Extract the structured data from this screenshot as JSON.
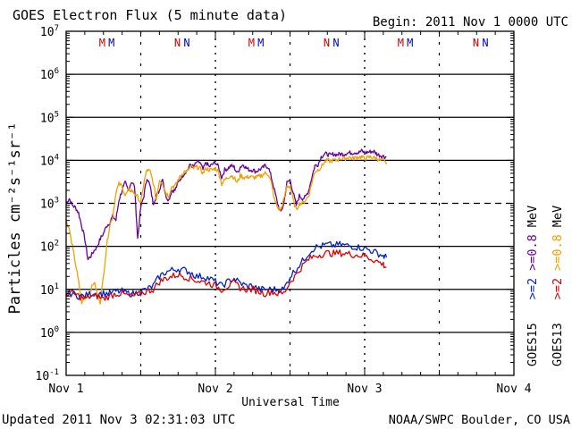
{
  "chart_data": {
    "type": "line",
    "title": "GOES Electron Flux (5 minute data)",
    "begin": "Begin: 2011 Nov 1 0000 UTC",
    "xlabel": "Universal Time",
    "ylabel": "Particles cm⁻²s⁻¹sr⁻¹",
    "updated": "Updated 2011 Nov  3 02:31:03 UTC",
    "credit": "NOAA/SWPC Boulder, CO USA",
    "x_unit": "hours since 2011 Nov 1 00:00 UTC",
    "xlim": [
      0,
      72
    ],
    "x_tick_labels": [
      {
        "x": 0,
        "label": "Nov 1"
      },
      {
        "x": 24,
        "label": "Nov 2"
      },
      {
        "x": 48,
        "label": "Nov 3"
      },
      {
        "x": 72,
        "label": "Nov 4"
      }
    ],
    "y_scale": "log",
    "ylim_log10": [
      -1,
      7
    ],
    "y_tick_labels": [
      {
        "exp": 7,
        "base": "10",
        "sup": "7"
      },
      {
        "exp": 6,
        "base": "10",
        "sup": "6"
      },
      {
        "exp": 5,
        "base": "10",
        "sup": "5"
      },
      {
        "exp": 4,
        "base": "10",
        "sup": "4"
      },
      {
        "exp": 3,
        "base": "10",
        "sup": "3"
      },
      {
        "exp": 2,
        "base": "10",
        "sup": "2"
      },
      {
        "exp": 1,
        "base": "10",
        "sup": "1"
      },
      {
        "exp": 0,
        "base": "10",
        "sup": "0"
      },
      {
        "exp": -1,
        "base": "10",
        "sup": "-1"
      }
    ],
    "threshold_dashed_at": 1000,
    "noon_markers_hours": [
      12,
      36,
      60
    ],
    "midnight_markers_hours": [
      24,
      48
    ],
    "markers": [
      {
        "label": "M",
        "x": 5.8,
        "color": "#cc0000"
      },
      {
        "label": "M",
        "x": 7.3,
        "color": "#0000cc"
      },
      {
        "label": "N",
        "x": 17.9,
        "color": "#cc0000"
      },
      {
        "label": "N",
        "x": 19.4,
        "color": "#0000cc"
      },
      {
        "label": "M",
        "x": 29.8,
        "color": "#cc0000"
      },
      {
        "label": "M",
        "x": 31.3,
        "color": "#0000cc"
      },
      {
        "label": "N",
        "x": 41.9,
        "color": "#cc0000"
      },
      {
        "label": "N",
        "x": 43.4,
        "color": "#0000cc"
      },
      {
        "label": "M",
        "x": 53.8,
        "color": "#cc0000"
      },
      {
        "label": "M",
        "x": 55.3,
        "color": "#0000cc"
      },
      {
        "label": "N",
        "x": 65.9,
        "color": "#cc0000"
      },
      {
        "label": "N",
        "x": 67.4,
        "color": "#0000cc"
      }
    ],
    "legend": {
      "position": "right",
      "columns": [
        {
          "sat": "GOES15",
          "items": [
            {
              "label": ">=2",
              "color": "#0022cc"
            },
            {
              "label": ">=0.8",
              "color": "#660099"
            },
            {
              "label": "MeV",
              "color": "#000000"
            }
          ]
        },
        {
          "sat": "GOES13",
          "items": [
            {
              "label": ">=2",
              "color": "#dd0000"
            },
            {
              "label": ">=0.8",
              "color": "#f0a000"
            },
            {
              "label": "MeV",
              "color": "#000000"
            }
          ]
        }
      ]
    },
    "series": [
      {
        "name": "GOES15 >=0.8 MeV",
        "color": "#660099",
        "x": [
          0,
          0.5,
          1,
          1.5,
          2,
          2.5,
          3,
          3.5,
          4,
          4.5,
          5,
          5.5,
          6,
          6.5,
          7,
          7.5,
          8,
          8.5,
          9,
          9.5,
          10,
          10.5,
          11,
          11.5,
          12,
          12.5,
          13,
          13.5,
          14,
          14.5,
          15,
          15.5,
          16,
          16.5,
          17,
          17.5,
          18,
          18.5,
          19,
          19.5,
          20,
          20.5,
          21,
          21.5,
          22,
          22.5,
          23,
          23.5,
          24,
          24.5,
          25,
          25.5,
          26,
          26.5,
          27,
          27.5,
          28,
          28.5,
          29,
          29.5,
          30,
          30.5,
          31,
          31.5,
          32,
          32.5,
          33,
          33.5,
          34,
          34.5,
          35,
          35.5,
          36,
          36.5,
          37,
          37.5,
          38,
          38.5,
          39,
          39.5,
          40,
          40.5,
          41,
          41.5,
          42,
          42.5,
          43,
          43.5,
          44,
          44.5,
          45,
          45.5,
          46,
          46.5,
          47,
          47.5,
          48,
          48.5,
          49,
          49.5,
          50,
          50.5,
          51,
          51.5
        ],
        "values": [
          1000,
          1300,
          900,
          800,
          600,
          300,
          150,
          50,
          60,
          80,
          100,
          150,
          200,
          300,
          350,
          500,
          400,
          1200,
          2000,
          3000,
          2000,
          3200,
          2500,
          150,
          800,
          1500,
          4000,
          2500,
          1000,
          1500,
          2000,
          4000,
          1500,
          1200,
          2000,
          2000,
          3000,
          4000,
          5000,
          6000,
          8000,
          7000,
          9000,
          9000,
          6000,
          9000,
          7000,
          8000,
          9000,
          7000,
          4000,
          6000,
          6500,
          7500,
          7000,
          5000,
          7000,
          8000,
          6500,
          6000,
          6000,
          5500,
          6000,
          6500,
          7500,
          7000,
          4000,
          2000,
          1000,
          600,
          1000,
          3000,
          3500,
          1800,
          900,
          1500,
          1300,
          1400,
          2000,
          4000,
          7500,
          8000,
          12000,
          14000,
          14000,
          13000,
          14000,
          13500,
          14000,
          14000,
          14500,
          15000,
          15000,
          15500,
          15000,
          16500,
          15000,
          15500,
          16000,
          16000,
          14000,
          13000,
          12500,
          12000
        ]
      },
      {
        "name": "GOES13 >=0.8 MeV",
        "color": "#f0a000",
        "x": [
          0,
          0.5,
          1,
          1.5,
          2,
          2.5,
          3,
          3.5,
          4,
          4.5,
          5,
          5.5,
          6,
          6.5,
          7,
          7.5,
          8,
          8.5,
          9,
          9.5,
          10,
          10.5,
          11,
          11.5,
          12,
          12.5,
          13,
          13.5,
          14,
          14.5,
          15,
          15.5,
          16,
          16.5,
          17,
          17.5,
          18,
          18.5,
          19,
          19.5,
          20,
          20.5,
          21,
          21.5,
          22,
          22.5,
          23,
          23.5,
          24,
          24.5,
          25,
          25.5,
          26,
          26.5,
          27,
          27.5,
          28,
          28.5,
          29,
          29.5,
          30,
          30.5,
          31,
          31.5,
          32,
          32.5,
          33,
          33.5,
          34,
          34.5,
          35,
          35.5,
          36,
          36.5,
          37,
          37.5,
          38,
          38.5,
          39,
          39.5,
          40,
          40.5,
          41,
          41.5,
          42,
          42.5,
          43,
          43.5,
          44,
          44.5,
          45,
          45.5,
          46,
          46.5,
          47,
          47.5,
          48,
          48.5,
          49,
          49.5,
          50,
          50.5,
          51,
          51.5
        ],
        "values": [
          400,
          250,
          100,
          40,
          15,
          5,
          6,
          8,
          10,
          15,
          8,
          5,
          20,
          100,
          300,
          500,
          1800,
          2800,
          2500,
          1500,
          2000,
          2000,
          1700,
          1400,
          1000,
          3000,
          6000,
          5500,
          3000,
          1200,
          3500,
          3000,
          1800,
          1500,
          2500,
          2500,
          3500,
          4500,
          5500,
          5500,
          7000,
          6500,
          7000,
          6500,
          5000,
          6500,
          6000,
          6000,
          6500,
          5500,
          2800,
          3500,
          4000,
          4500,
          4000,
          3000,
          4500,
          4000,
          4000,
          4200,
          4000,
          4000,
          4200,
          4500,
          5000,
          4800,
          3000,
          1200,
          800,
          700,
          1200,
          2500,
          2500,
          1200,
          700,
          1000,
          1000,
          1200,
          1500,
          3000,
          5500,
          6000,
          7000,
          9000,
          10000,
          9500,
          10000,
          10000,
          11000,
          11000,
          11000,
          12000,
          11000,
          11500,
          12000,
          12000,
          11000,
          11500,
          12000,
          11500,
          11000,
          10000,
          10000,
          8000
        ]
      },
      {
        "name": "GOES15 >=2 MeV",
        "color": "#0022cc",
        "x": [
          0,
          1,
          2,
          3,
          4,
          5,
          6,
          7,
          8,
          9,
          10,
          11,
          12,
          13,
          14,
          15,
          16,
          17,
          18,
          19,
          20,
          21,
          22,
          23,
          24,
          25,
          26,
          27,
          28,
          29,
          30,
          31,
          32,
          33,
          34,
          35,
          36,
          37,
          38,
          39,
          40,
          41,
          42,
          43,
          44,
          45,
          46,
          47,
          48,
          49,
          50,
          51,
          51.5
        ],
        "values": [
          8,
          8,
          7,
          7,
          8,
          8,
          8,
          8,
          9,
          9,
          8,
          8,
          9,
          10,
          12,
          20,
          25,
          28,
          30,
          28,
          25,
          20,
          20,
          18,
          15,
          12,
          15,
          18,
          14,
          12,
          12,
          10,
          10,
          10,
          10,
          10,
          20,
          30,
          45,
          70,
          95,
          100,
          110,
          105,
          110,
          105,
          100,
          95,
          90,
          80,
          70,
          60,
          55
        ]
      },
      {
        "name": "GOES13 >=2 MeV",
        "color": "#dd0000",
        "x": [
          0,
          1,
          2,
          3,
          4,
          5,
          6,
          7,
          8,
          9,
          10,
          11,
          12,
          13,
          14,
          15,
          16,
          17,
          18,
          19,
          20,
          21,
          22,
          23,
          24,
          25,
          26,
          27,
          28,
          29,
          30,
          31,
          32,
          33,
          34,
          35,
          36,
          37,
          38,
          39,
          40,
          41,
          42,
          43,
          44,
          45,
          46,
          47,
          48,
          49,
          50,
          51,
          51.5
        ],
        "values": [
          8,
          8,
          7,
          6,
          7,
          7,
          6,
          7,
          8,
          8,
          7,
          7,
          8,
          9,
          10,
          15,
          18,
          20,
          22,
          20,
          18,
          16,
          15,
          14,
          12,
          10,
          12,
          14,
          11,
          10,
          10,
          9,
          8,
          9,
          8,
          8,
          15,
          22,
          35,
          50,
          60,
          65,
          70,
          68,
          70,
          68,
          65,
          62,
          60,
          52,
          45,
          38,
          32
        ]
      }
    ]
  }
}
